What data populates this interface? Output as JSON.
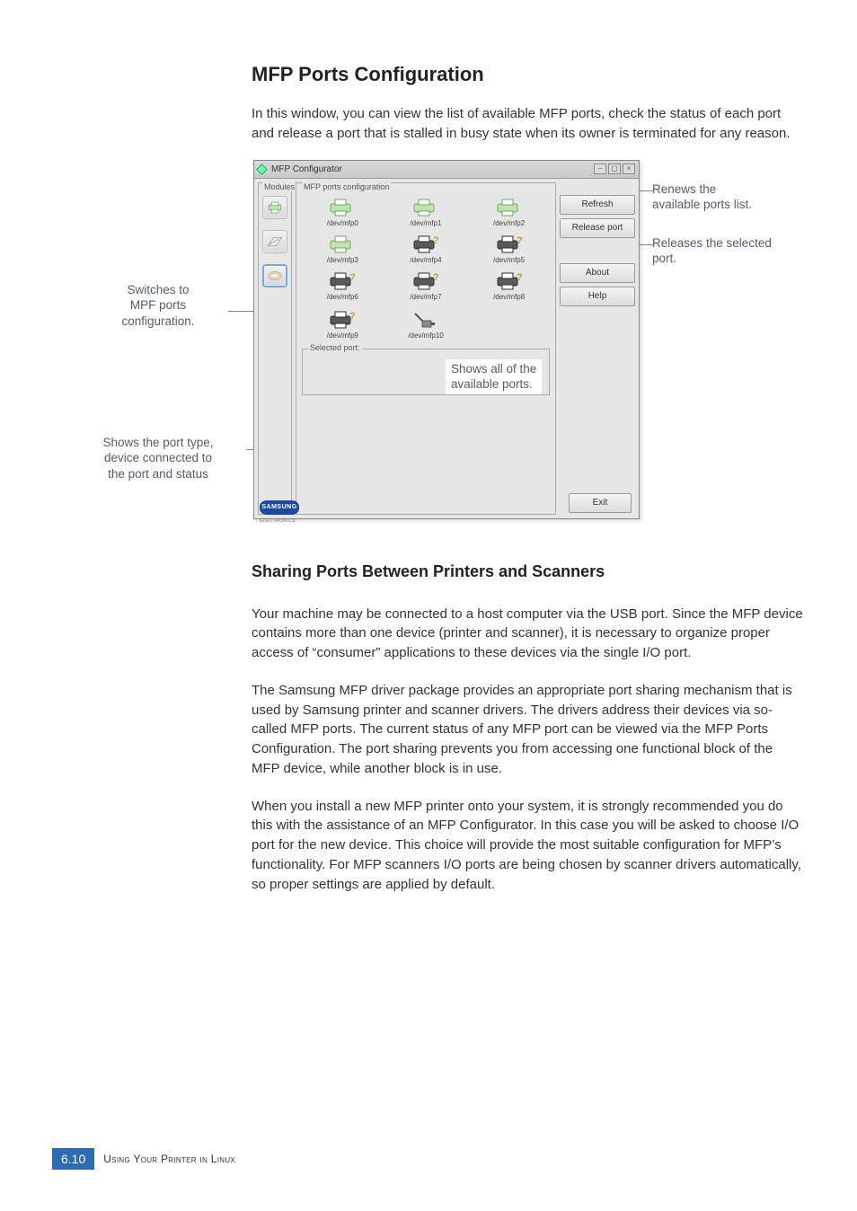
{
  "headings": {
    "main": "MFP Ports Configuration",
    "sub": "Sharing Ports Between Printers and Scanners"
  },
  "paragraphs": {
    "intro": "In this window, you can view the list of available MFP ports, check the status of each port and release a port that is stalled in busy state when its owner is terminated for any reason.",
    "p1": "Your machine may be connected to a host computer via the USB port. Since the MFP device contains more than one device (printer and scanner), it is necessary to organize proper access of “consumer” applications to these devices via the single I/O port.",
    "p2": "The Samsung MFP driver package provides an appropriate port sharing mechanism that is used by Samsung printer and scanner drivers. The drivers address their devices via so-called MFP ports. The current status of any MFP port can be viewed via the MFP Ports Configuration. The port sharing prevents you from accessing one functional block of the MFP device, while another block is in use.",
    "p3": "When you install a new MFP printer onto your system, it is strongly recommended you do this with the assistance of an MFP Configurator. In this case you will be asked to choose I/O port for the new device. This choice will provide the most suitable configuration for MFP’s functionality. For MFP scanners I/O ports are being chosen by scanner drivers automatically, so proper settings are applied by default."
  },
  "window": {
    "title": "MFP Configurator",
    "modules_label": "Modules",
    "ports_section_label": "MFP ports configuration",
    "selected_port_label": "Selected port:",
    "buttons": {
      "refresh": "Refresh",
      "release": "Release port",
      "about": "About",
      "help": "Help",
      "exit": "Exit"
    },
    "logo": "SAMSUNG",
    "logo_sub": "ELECTRONICS",
    "port_variants": [
      {
        "name": "/dev/mfp0",
        "kind": "ltgreen"
      },
      {
        "name": "/dev/mfp1",
        "kind": "ltgreen"
      },
      {
        "name": "/dev/mfp2",
        "kind": "ltgreen"
      },
      {
        "name": "/dev/mfp3",
        "kind": "ltgreen"
      },
      {
        "name": "/dev/mfp4",
        "kind": "dark"
      },
      {
        "name": "/dev/mfp5",
        "kind": "dark"
      },
      {
        "name": "/dev/mfp6",
        "kind": "dark"
      },
      {
        "name": "/dev/mfp7",
        "kind": "dark"
      },
      {
        "name": "/dev/mfp8",
        "kind": "dark"
      },
      {
        "name": "/dev/mfp9",
        "kind": "dark"
      },
      {
        "name": "/dev/mfp10",
        "kind": "cable"
      }
    ],
    "colors": {
      "lt_body": "#bfe3b1",
      "lt_edge": "#6fa85d",
      "dk_body": "#5a5a5a",
      "dk_edge": "#2e2e2e",
      "cbl_body": "#888888",
      "cbl_edge": "#555555",
      "overlay_q": "#c99a2e"
    }
  },
  "callouts": {
    "left_switch": "Switches to\nMPF ports\nconfiguration.",
    "left_selected": "Shows the port type,\ndevice connected to\nthe port and status",
    "right_refresh": "Renews the\navailable ports list.",
    "right_release": "Releases the selected\nport.",
    "center_ports": "Shows all of the\navailable ports."
  },
  "footer": {
    "page": "6.10",
    "text": "Using Your Printer in Linux"
  }
}
